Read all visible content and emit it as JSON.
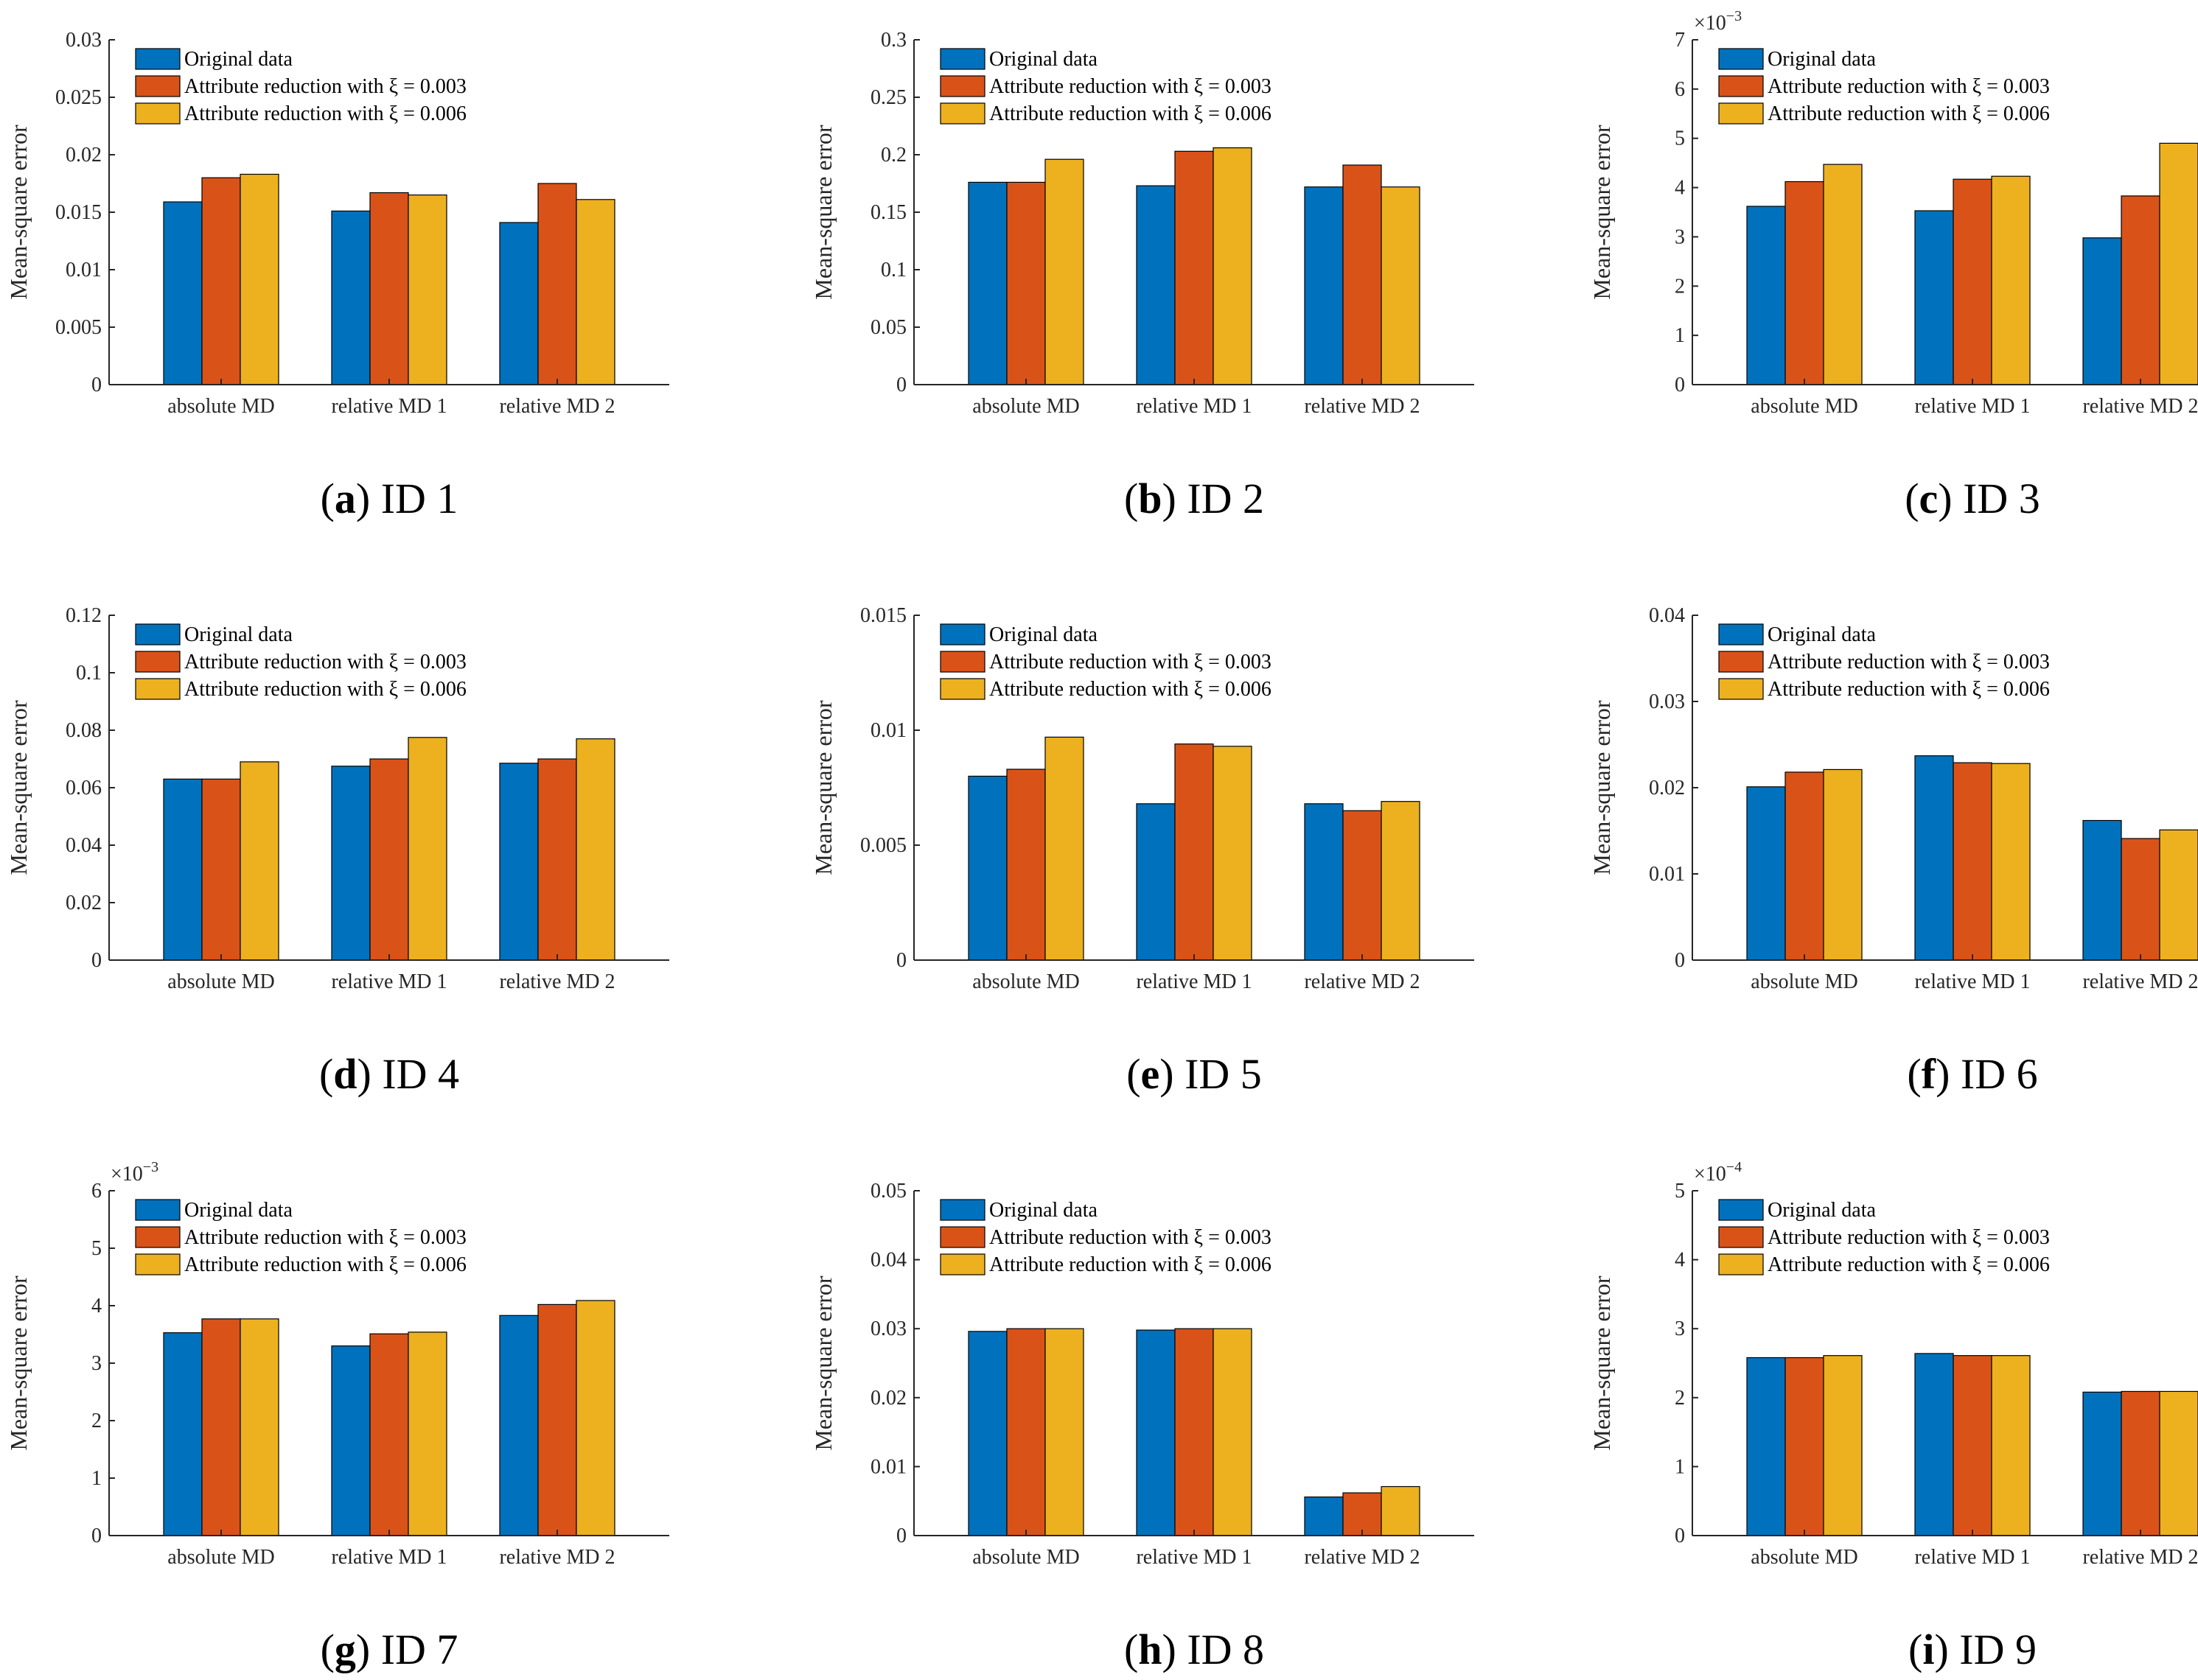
{
  "figure": {
    "colors": {
      "original": "#0072BD",
      "xi003": "#D95319",
      "xi006": "#EDB120",
      "axis": "#262626"
    }
  },
  "chart_data": [
    {
      "type": "bar",
      "id": "a",
      "caption_letter": "a",
      "caption_label": "ID 1",
      "categories": [
        "absolute MD",
        "relative MD 1",
        "relative MD 2"
      ],
      "series": [
        {
          "name": "Original data",
          "values": [
            0.0159,
            0.0151,
            0.0141
          ]
        },
        {
          "name": "Attribute reduction with ξ = 0.003",
          "values": [
            0.018,
            0.0167,
            0.0175
          ]
        },
        {
          "name": "Attribute reduction with ξ = 0.006",
          "values": [
            0.0183,
            0.0165,
            0.0161
          ]
        }
      ],
      "ylabel": "Mean-square error",
      "ylim": [
        0,
        0.03
      ],
      "yticks": [
        0,
        0.005,
        0.01,
        0.015,
        0.02,
        0.025,
        0.03
      ],
      "ytick_labels": [
        "0",
        "0.005",
        "0.01",
        "0.015",
        "0.02",
        "0.025",
        "0.03"
      ],
      "multiplier": "",
      "multiplier_exp": ""
    },
    {
      "type": "bar",
      "id": "b",
      "caption_letter": "b",
      "caption_label": "ID 2",
      "categories": [
        "absolute MD",
        "relative MD 1",
        "relative MD 2"
      ],
      "series": [
        {
          "name": "Original data",
          "values": [
            0.176,
            0.173,
            0.172
          ]
        },
        {
          "name": "Attribute reduction with ξ = 0.003",
          "values": [
            0.176,
            0.203,
            0.191
          ]
        },
        {
          "name": "Attribute reduction with ξ = 0.006",
          "values": [
            0.196,
            0.206,
            0.172
          ]
        }
      ],
      "ylabel": "Mean-square error",
      "ylim": [
        0,
        0.3
      ],
      "yticks": [
        0,
        0.05,
        0.1,
        0.15,
        0.2,
        0.25,
        0.3
      ],
      "ytick_labels": [
        "0",
        "0.05",
        "0.1",
        "0.15",
        "0.2",
        "0.25",
        "0.3"
      ],
      "multiplier": "",
      "multiplier_exp": ""
    },
    {
      "type": "bar",
      "id": "c",
      "caption_letter": "c",
      "caption_label": "ID 3",
      "categories": [
        "absolute MD",
        "relative MD 1",
        "relative MD 2"
      ],
      "series": [
        {
          "name": "Original data",
          "values": [
            3.62,
            3.53,
            2.98
          ]
        },
        {
          "name": "Attribute reduction with ξ = 0.003",
          "values": [
            4.12,
            4.17,
            3.83
          ]
        },
        {
          "name": "Attribute reduction with ξ = 0.006",
          "values": [
            4.47,
            4.23,
            4.9
          ]
        }
      ],
      "ylabel": "Mean-square error",
      "ylim": [
        0,
        7
      ],
      "yticks": [
        0,
        1,
        2,
        3,
        4,
        5,
        6,
        7
      ],
      "ytick_labels": [
        "0",
        "1",
        "2",
        "3",
        "4",
        "5",
        "6",
        "7"
      ],
      "multiplier": "×10",
      "multiplier_exp": "−3"
    },
    {
      "type": "bar",
      "id": "d",
      "caption_letter": "d",
      "caption_label": "ID 4",
      "categories": [
        "absolute MD",
        "relative MD 1",
        "relative MD 2"
      ],
      "series": [
        {
          "name": "Original data",
          "values": [
            0.063,
            0.0675,
            0.0685
          ]
        },
        {
          "name": "Attribute reduction with ξ = 0.003",
          "values": [
            0.063,
            0.07,
            0.07
          ]
        },
        {
          "name": "Attribute reduction with ξ = 0.006",
          "values": [
            0.069,
            0.0775,
            0.077
          ]
        }
      ],
      "ylabel": "Mean-square error",
      "ylim": [
        0,
        0.12
      ],
      "yticks": [
        0,
        0.02,
        0.04,
        0.06,
        0.08,
        0.1,
        0.12
      ],
      "ytick_labels": [
        "0",
        "0.02",
        "0.04",
        "0.06",
        "0.08",
        "0.1",
        "0.12"
      ],
      "multiplier": "",
      "multiplier_exp": ""
    },
    {
      "type": "bar",
      "id": "e",
      "caption_letter": "e",
      "caption_label": "ID 5",
      "categories": [
        "absolute MD",
        "relative MD 1",
        "relative MD 2"
      ],
      "series": [
        {
          "name": "Original data",
          "values": [
            0.008,
            0.0068,
            0.0068
          ]
        },
        {
          "name": "Attribute reduction with ξ = 0.003",
          "values": [
            0.0083,
            0.0094,
            0.0065
          ]
        },
        {
          "name": "Attribute reduction with ξ = 0.006",
          "values": [
            0.0097,
            0.0093,
            0.0069
          ]
        }
      ],
      "ylabel": "Mean-square error",
      "ylim": [
        0,
        0.015
      ],
      "yticks": [
        0,
        0.005,
        0.01,
        0.015
      ],
      "ytick_labels": [
        "0",
        "0.005",
        "0.01",
        "0.015"
      ],
      "multiplier": "",
      "multiplier_exp": ""
    },
    {
      "type": "bar",
      "id": "f",
      "caption_letter": "f",
      "caption_label": "ID 6",
      "categories": [
        "absolute MD",
        "relative MD 1",
        "relative MD 2"
      ],
      "series": [
        {
          "name": "Original data",
          "values": [
            0.0201,
            0.0237,
            0.0162
          ]
        },
        {
          "name": "Attribute reduction with ξ = 0.003",
          "values": [
            0.0218,
            0.0229,
            0.0141
          ]
        },
        {
          "name": "Attribute reduction with ξ = 0.006",
          "values": [
            0.0221,
            0.0228,
            0.0151
          ]
        }
      ],
      "ylabel": "Mean-square error",
      "ylim": [
        0,
        0.04
      ],
      "yticks": [
        0,
        0.01,
        0.02,
        0.03,
        0.04
      ],
      "ytick_labels": [
        "0",
        "0.01",
        "0.02",
        "0.03",
        "0.04"
      ],
      "multiplier": "",
      "multiplier_exp": ""
    },
    {
      "type": "bar",
      "id": "g",
      "caption_letter": "g",
      "caption_label": "ID 7",
      "categories": [
        "absolute MD",
        "relative MD 1",
        "relative MD 2"
      ],
      "series": [
        {
          "name": "Original data",
          "values": [
            3.53,
            3.3,
            3.83
          ]
        },
        {
          "name": "Attribute reduction with ξ = 0.003",
          "values": [
            3.77,
            3.51,
            4.02
          ]
        },
        {
          "name": "Attribute reduction with ξ = 0.006",
          "values": [
            3.77,
            3.54,
            4.09
          ]
        }
      ],
      "ylabel": "Mean-square error",
      "ylim": [
        0,
        6
      ],
      "yticks": [
        0,
        1,
        2,
        3,
        4,
        5,
        6
      ],
      "ytick_labels": [
        "0",
        "1",
        "2",
        "3",
        "4",
        "5",
        "6"
      ],
      "multiplier": "×10",
      "multiplier_exp": "−3"
    },
    {
      "type": "bar",
      "id": "h",
      "caption_letter": "h",
      "caption_label": "ID 8",
      "categories": [
        "absolute MD",
        "relative MD 1",
        "relative MD 2"
      ],
      "series": [
        {
          "name": "Original data",
          "values": [
            0.0296,
            0.0298,
            0.0056
          ]
        },
        {
          "name": "Attribute reduction with ξ = 0.003",
          "values": [
            0.03,
            0.03,
            0.0062
          ]
        },
        {
          "name": "Attribute reduction with ξ = 0.006",
          "values": [
            0.03,
            0.03,
            0.0071
          ]
        }
      ],
      "ylabel": "Mean-square error",
      "ylim": [
        0,
        0.05
      ],
      "yticks": [
        0,
        0.01,
        0.02,
        0.03,
        0.04,
        0.05
      ],
      "ytick_labels": [
        "0",
        "0.01",
        "0.02",
        "0.03",
        "0.04",
        "0.05"
      ],
      "multiplier": "",
      "multiplier_exp": ""
    },
    {
      "type": "bar",
      "id": "i",
      "caption_letter": "i",
      "caption_label": "ID 9",
      "categories": [
        "absolute MD",
        "relative MD 1",
        "relative MD 2"
      ],
      "series": [
        {
          "name": "Original data",
          "values": [
            2.58,
            2.64,
            2.08
          ]
        },
        {
          "name": "Attribute reduction with ξ = 0.003",
          "values": [
            2.58,
            2.61,
            2.09
          ]
        },
        {
          "name": "Attribute reduction with ξ = 0.006",
          "values": [
            2.61,
            2.61,
            2.09
          ]
        }
      ],
      "ylabel": "Mean-square error",
      "ylim": [
        0,
        5
      ],
      "yticks": [
        0,
        1,
        2,
        3,
        4,
        5
      ],
      "ytick_labels": [
        "0",
        "1",
        "2",
        "3",
        "4",
        "5"
      ],
      "multiplier": "×10",
      "multiplier_exp": "−4"
    }
  ]
}
